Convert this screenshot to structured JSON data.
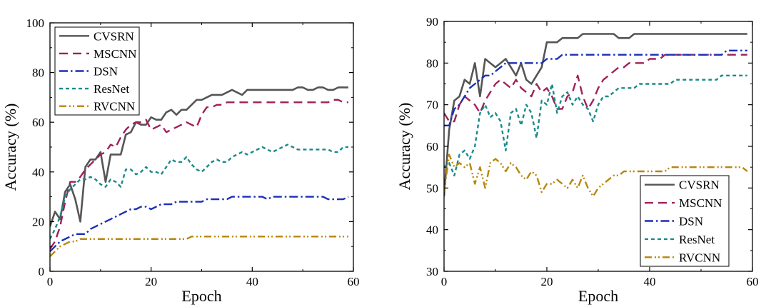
{
  "chart_data": [
    {
      "type": "line",
      "xlabel": "Epoch",
      "ylabel": "Accuracy (%)",
      "xlim": [
        0,
        60
      ],
      "ylim": [
        0,
        100
      ],
      "xticks": [
        0,
        20,
        40,
        60
      ],
      "yticks": [
        0,
        20,
        40,
        60,
        80,
        100
      ],
      "legend_position": "top-left",
      "grid": false,
      "x": [
        0,
        1,
        2,
        3,
        4,
        5,
        6,
        7,
        8,
        9,
        10,
        11,
        12,
        13,
        14,
        15,
        16,
        17,
        18,
        19,
        20,
        21,
        22,
        23,
        24,
        25,
        26,
        27,
        28,
        29,
        30,
        31,
        32,
        33,
        34,
        35,
        36,
        37,
        38,
        39,
        40,
        41,
        42,
        43,
        44,
        45,
        46,
        47,
        48,
        49,
        50,
        51,
        52,
        53,
        54,
        55,
        56,
        57,
        58,
        59
      ],
      "series": [
        {
          "name": "CVSRN",
          "color": "#555555",
          "dash": "solid",
          "values": [
            18,
            24,
            21,
            32,
            35,
            29,
            20,
            42,
            45,
            45,
            48,
            36,
            47,
            47,
            47,
            55,
            56,
            60,
            59,
            59,
            62,
            61,
            61,
            64,
            65,
            63,
            65,
            65,
            67,
            69,
            69,
            70,
            71,
            71,
            71,
            72,
            73,
            72,
            71,
            73,
            73,
            73,
            73,
            73,
            73,
            73,
            73,
            73,
            73,
            74,
            74,
            73,
            73,
            74,
            74,
            73,
            73,
            74,
            74,
            74
          ]
        },
        {
          "name": "MSCNN",
          "color": "#a0205a",
          "dash": "12,7",
          "values": [
            9,
            12,
            18,
            28,
            36,
            36,
            38,
            41,
            43,
            45,
            47,
            48,
            51,
            50,
            54,
            57,
            59,
            60,
            60,
            61,
            57,
            58,
            59,
            56,
            57,
            58,
            59,
            60,
            59,
            58,
            63,
            66,
            66,
            67,
            67,
            68,
            68,
            68,
            68,
            68,
            68,
            68,
            68,
            68,
            68,
            68,
            68,
            68,
            68,
            68,
            68,
            68,
            68,
            68,
            68,
            68,
            69,
            69,
            68,
            68
          ]
        },
        {
          "name": "DSN",
          "color": "#1c2fb8",
          "dash": "12,4,2.5,4",
          "values": [
            8,
            10,
            12,
            13,
            14,
            15,
            15,
            15,
            17,
            18,
            19,
            20,
            21,
            22,
            23,
            24,
            25,
            25,
            26,
            26,
            25,
            26,
            27,
            27,
            27,
            28,
            28,
            28,
            28,
            28,
            28,
            29,
            29,
            29,
            29,
            29,
            30,
            30,
            30,
            30,
            30,
            30,
            30,
            29,
            30,
            30,
            30,
            30,
            30,
            30,
            30,
            30,
            30,
            30,
            30,
            29,
            29,
            29,
            29,
            30
          ]
        },
        {
          "name": "ResNet",
          "color": "#1a8a8a",
          "dash": "5,4",
          "values": [
            13,
            17,
            22,
            30,
            33,
            35,
            37,
            37,
            38,
            37,
            35,
            34,
            37,
            36,
            34,
            41,
            41,
            39,
            40,
            42,
            40,
            40,
            39,
            42,
            45,
            44,
            44,
            46,
            43,
            41,
            40,
            42,
            44,
            45,
            44,
            44,
            46,
            47,
            48,
            47,
            48,
            49,
            50,
            49,
            48,
            49,
            50,
            51,
            50,
            49,
            49,
            49,
            49,
            49,
            49,
            49,
            48,
            48,
            50,
            50
          ]
        },
        {
          "name": "RVCNN",
          "color": "#b8860b",
          "dash": "10,4,2,3,2,4",
          "values": [
            6,
            8,
            10,
            11,
            12,
            12,
            13,
            13,
            13,
            13,
            13,
            13,
            13,
            13,
            13,
            13,
            13,
            13,
            13,
            13,
            13,
            13,
            13,
            13,
            13,
            13,
            13,
            13,
            14,
            14,
            14,
            14,
            14,
            14,
            14,
            14,
            14,
            14,
            14,
            14,
            14,
            14,
            14,
            14,
            14,
            14,
            14,
            14,
            14,
            14,
            14,
            14,
            14,
            14,
            14,
            14,
            14,
            14,
            14,
            14
          ]
        }
      ]
    },
    {
      "type": "line",
      "xlabel": "Epoch",
      "ylabel": "Accuracy (%)",
      "xlim": [
        0,
        60
      ],
      "ylim": [
        30,
        90
      ],
      "xticks": [
        0,
        20,
        40,
        60
      ],
      "yticks": [
        30,
        40,
        50,
        60,
        70,
        80,
        90
      ],
      "legend_position": "bottom-right",
      "grid": false,
      "x": [
        0,
        1,
        2,
        3,
        4,
        5,
        6,
        7,
        8,
        9,
        10,
        11,
        12,
        13,
        14,
        15,
        16,
        17,
        18,
        19,
        20,
        21,
        22,
        23,
        24,
        25,
        26,
        27,
        28,
        29,
        30,
        31,
        32,
        33,
        34,
        35,
        36,
        37,
        38,
        39,
        40,
        41,
        42,
        43,
        44,
        45,
        46,
        47,
        48,
        49,
        50,
        51,
        52,
        53,
        54,
        55,
        56,
        57,
        58,
        59
      ],
      "series": [
        {
          "name": "CVSRN",
          "color": "#555555",
          "dash": "solid",
          "values": [
            48,
            64,
            71,
            72,
            76,
            75,
            80,
            72,
            81,
            80,
            79,
            80,
            81,
            79,
            77,
            80,
            76,
            75,
            77,
            79,
            85,
            85,
            85,
            86,
            86,
            86,
            86,
            87,
            87,
            87,
            87,
            87,
            87,
            87,
            86,
            86,
            86,
            87,
            87,
            87,
            87,
            87,
            87,
            87,
            87,
            87,
            87,
            87,
            87,
            87,
            87,
            87,
            87,
            87,
            87,
            87,
            87,
            87,
            87,
            87
          ]
        },
        {
          "name": "MSCNN",
          "color": "#a0205a",
          "dash": "12,7",
          "values": [
            68,
            66,
            66,
            70,
            72,
            71,
            70,
            68,
            71,
            73,
            75,
            76,
            75,
            74,
            76,
            74,
            73,
            72,
            75,
            73,
            74,
            72,
            69,
            69,
            72,
            73,
            77,
            72,
            69,
            71,
            74,
            76,
            77,
            78,
            79,
            79,
            80,
            80,
            80,
            80,
            81,
            81,
            81,
            82,
            82,
            82,
            82,
            82,
            82,
            82,
            82,
            82,
            82,
            82,
            82,
            82,
            82,
            82,
            82,
            82
          ]
        },
        {
          "name": "DSN",
          "color": "#1c2fb8",
          "dash": "12,4,2.5,4",
          "values": [
            65,
            65,
            69,
            70,
            72,
            74,
            75,
            76,
            77,
            77,
            78,
            79,
            80,
            80,
            80,
            80,
            80,
            80,
            80,
            80,
            81,
            81,
            81,
            82,
            82,
            82,
            82,
            82,
            82,
            82,
            82,
            82,
            82,
            82,
            82,
            82,
            82,
            82,
            82,
            82,
            82,
            82,
            82,
            82,
            82,
            82,
            82,
            82,
            82,
            82,
            82,
            82,
            82,
            82,
            82,
            83,
            83,
            83,
            83,
            83
          ]
        },
        {
          "name": "ResNet",
          "color": "#1a8a8a",
          "dash": "5,4",
          "values": [
            55,
            56,
            53,
            58,
            59,
            57,
            60,
            68,
            70,
            67,
            68,
            66,
            59,
            68,
            69,
            65,
            70,
            68,
            62,
            71,
            70,
            75,
            68,
            72,
            73,
            70,
            72,
            70,
            69,
            66,
            70,
            72,
            72,
            73,
            74,
            74,
            74,
            74,
            75,
            75,
            75,
            75,
            75,
            75,
            75,
            76,
            76,
            76,
            76,
            76,
            76,
            76,
            76,
            76,
            77,
            77,
            77,
            77,
            77,
            77
          ]
        },
        {
          "name": "RVCNN",
          "color": "#b8860b",
          "dash": "10,4,2,3,2,4",
          "values": [
            49,
            58,
            55,
            56,
            55,
            56,
            51,
            55,
            50,
            56,
            57,
            56,
            54,
            56,
            55,
            53,
            52,
            54,
            53,
            49,
            51,
            51,
            52,
            51,
            50,
            52,
            50,
            53,
            50,
            48,
            50,
            51,
            52,
            53,
            53,
            54,
            54,
            54,
            54,
            54,
            54,
            54,
            54,
            54,
            55,
            55,
            55,
            55,
            55,
            55,
            55,
            55,
            55,
            55,
            55,
            55,
            55,
            55,
            55,
            54
          ]
        }
      ]
    }
  ]
}
